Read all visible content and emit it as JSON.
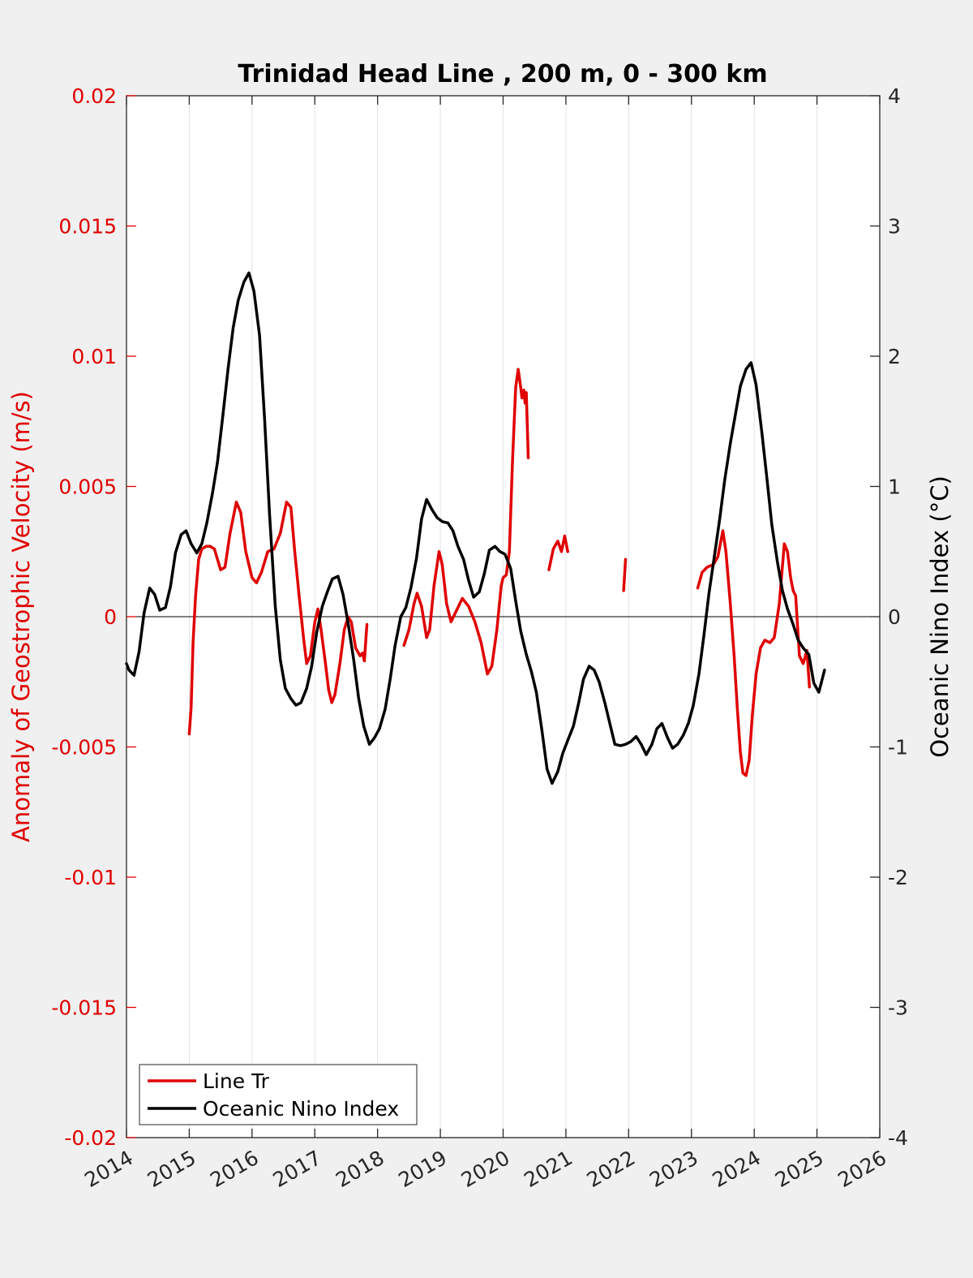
{
  "chart_data": {
    "type": "line",
    "title": "Trinidad Head Line , 200 m, 0 - 300 km",
    "ylabel_left": "Anomaly of Geostrophic Velocity (m/s)",
    "ylabel_right": "Oceanic Nino Index (°C)",
    "xlabel": "",
    "xlim": [
      2014,
      2026
    ],
    "ylim_left": [
      -0.02,
      0.02
    ],
    "ylim_right": [
      -4,
      4
    ],
    "x_ticks": [
      "2014",
      "2015",
      "2016",
      "2017",
      "2018",
      "2019",
      "2020",
      "2021",
      "2022",
      "2023",
      "2024",
      "2025",
      "2026"
    ],
    "y_left_ticks": [
      "0.02",
      "0.015",
      "0.01",
      "0.005",
      "0",
      "-0.005",
      "-0.01",
      "-0.015",
      "-0.02"
    ],
    "y_right_ticks": [
      "4",
      "3",
      "2",
      "1",
      "0",
      "-1",
      "-2",
      "-3",
      "-4"
    ],
    "grid": "vertical",
    "legend_position": "bottom-left",
    "colors": {
      "left_axis": "#e00000",
      "right_axis": "#000000",
      "line_tr": "#e00000",
      "oni": "#000000"
    },
    "series": [
      {
        "name": "Line Tr",
        "axis": "left",
        "color": "#e00000",
        "segments": [
          [
            [
              2015.0,
              -0.0045
            ],
            [
              2015.03,
              -0.0035
            ],
            [
              2015.06,
              -0.001
            ],
            [
              2015.1,
              0.0008
            ],
            [
              2015.15,
              0.0022
            ],
            [
              2015.2,
              0.0026
            ],
            [
              2015.27,
              0.0027
            ],
            [
              2015.33,
              0.0027
            ],
            [
              2015.4,
              0.0026
            ],
            [
              2015.5,
              0.0018
            ],
            [
              2015.57,
              0.0019
            ],
            [
              2015.65,
              0.0032
            ],
            [
              2015.75,
              0.0044
            ],
            [
              2015.82,
              0.004
            ],
            [
              2015.9,
              0.0025
            ],
            [
              2016.0,
              0.0015
            ],
            [
              2016.07,
              0.0013
            ],
            [
              2016.15,
              0.0017
            ],
            [
              2016.25,
              0.0025
            ],
            [
              2016.35,
              0.0026
            ],
            [
              2016.45,
              0.0032
            ],
            [
              2016.55,
              0.0044
            ],
            [
              2016.62,
              0.0042
            ],
            [
              2016.68,
              0.0025
            ],
            [
              2016.75,
              0.0008
            ],
            [
              2016.82,
              -0.0008
            ],
            [
              2016.87,
              -0.0018
            ],
            [
              2016.93,
              -0.0015
            ],
            [
              2017.0,
              -0.0002
            ],
            [
              2017.05,
              0.0003
            ],
            [
              2017.1,
              -0.0005
            ],
            [
              2017.17,
              -0.0018
            ],
            [
              2017.22,
              -0.0028
            ],
            [
              2017.27,
              -0.0033
            ],
            [
              2017.32,
              -0.003
            ],
            [
              2017.4,
              -0.0018
            ],
            [
              2017.47,
              -0.0005
            ],
            [
              2017.53,
              0.0
            ],
            [
              2017.58,
              -0.0002
            ],
            [
              2017.65,
              -0.0012
            ],
            [
              2017.72,
              -0.0015
            ],
            [
              2017.76,
              -0.0014
            ],
            [
              2017.79,
              -0.0017
            ],
            [
              2017.83,
              -0.0003
            ]
          ],
          [
            [
              2018.42,
              -0.0011
            ],
            [
              2018.5,
              -0.0005
            ],
            [
              2018.58,
              0.0005
            ],
            [
              2018.63,
              0.0009
            ],
            [
              2018.7,
              0.0004
            ],
            [
              2018.78,
              -0.0008
            ],
            [
              2018.83,
              -0.0005
            ],
            [
              2018.9,
              0.0012
            ],
            [
              2018.98,
              0.0025
            ],
            [
              2019.03,
              0.002
            ],
            [
              2019.1,
              0.0005
            ],
            [
              2019.17,
              -0.0002
            ],
            [
              2019.25,
              0.0002
            ],
            [
              2019.35,
              0.0007
            ],
            [
              2019.45,
              0.0004
            ],
            [
              2019.55,
              -0.0002
            ],
            [
              2019.65,
              -0.001
            ],
            [
              2019.75,
              -0.0022
            ],
            [
              2019.82,
              -0.0019
            ],
            [
              2019.9,
              -0.0005
            ],
            [
              2019.97,
              0.0012
            ],
            [
              2020.0,
              0.0015
            ],
            [
              2020.05,
              0.0016
            ],
            [
              2020.1,
              0.0025
            ],
            [
              2020.15,
              0.006
            ],
            [
              2020.2,
              0.0088
            ],
            [
              2020.24,
              0.0095
            ],
            [
              2020.28,
              0.0088
            ],
            [
              2020.3,
              0.0084
            ],
            [
              2020.33,
              0.0087
            ],
            [
              2020.35,
              0.0082
            ],
            [
              2020.37,
              0.0086
            ],
            [
              2020.4,
              0.0061
            ]
          ],
          [
            [
              2020.73,
              0.0018
            ],
            [
              2020.8,
              0.0026
            ],
            [
              2020.87,
              0.0029
            ],
            [
              2020.93,
              0.0025
            ],
            [
              2020.98,
              0.0031
            ],
            [
              2021.03,
              0.0025
            ]
          ],
          [
            [
              2021.92,
              0.001
            ],
            [
              2021.95,
              0.0022
            ]
          ],
          [
            [
              2023.1,
              0.0011
            ],
            [
              2023.17,
              0.0017
            ],
            [
              2023.25,
              0.0019
            ],
            [
              2023.35,
              0.002
            ],
            [
              2023.42,
              0.0023
            ],
            [
              2023.5,
              0.0033
            ],
            [
              2023.55,
              0.0025
            ],
            [
              2023.62,
              0.0005
            ],
            [
              2023.68,
              -0.0015
            ],
            [
              2023.73,
              -0.0035
            ],
            [
              2023.78,
              -0.0052
            ],
            [
              2023.82,
              -0.006
            ],
            [
              2023.87,
              -0.0061
            ],
            [
              2023.92,
              -0.0055
            ],
            [
              2023.97,
              -0.0038
            ],
            [
              2024.03,
              -0.0022
            ],
            [
              2024.1,
              -0.0012
            ],
            [
              2024.17,
              -0.0009
            ],
            [
              2024.25,
              -0.001
            ],
            [
              2024.32,
              -0.0008
            ],
            [
              2024.4,
              0.0005
            ],
            [
              2024.48,
              0.0028
            ],
            [
              2024.53,
              0.0025
            ],
            [
              2024.58,
              0.0015
            ],
            [
              2024.62,
              0.001
            ],
            [
              2024.66,
              0.0008
            ],
            [
              2024.72,
              -0.0015
            ],
            [
              2024.78,
              -0.0018
            ],
            [
              2024.84,
              -0.0013
            ],
            [
              2024.88,
              -0.0027
            ]
          ]
        ]
      },
      {
        "name": "Oceanic Nino Index",
        "axis": "right",
        "color": "#000000",
        "segments": [
          [
            [
              2014.0,
              -0.36
            ],
            [
              2014.04,
              -0.41
            ],
            [
              2014.12,
              -0.45
            ],
            [
              2014.2,
              -0.27
            ],
            [
              2014.28,
              0.03
            ],
            [
              2014.37,
              0.22
            ],
            [
              2014.45,
              0.17
            ],
            [
              2014.53,
              0.05
            ],
            [
              2014.62,
              0.07
            ],
            [
              2014.7,
              0.23
            ],
            [
              2014.78,
              0.49
            ],
            [
              2014.87,
              0.63
            ],
            [
              2014.95,
              0.66
            ],
            [
              2015.03,
              0.56
            ],
            [
              2015.12,
              0.49
            ],
            [
              2015.2,
              0.56
            ],
            [
              2015.28,
              0.72
            ],
            [
              2015.37,
              0.95
            ],
            [
              2015.45,
              1.19
            ],
            [
              2015.53,
              1.52
            ],
            [
              2015.62,
              1.91
            ],
            [
              2015.7,
              2.22
            ],
            [
              2015.78,
              2.43
            ],
            [
              2015.87,
              2.57
            ],
            [
              2015.95,
              2.64
            ],
            [
              2016.03,
              2.5
            ],
            [
              2016.12,
              2.16
            ],
            [
              2016.2,
              1.52
            ],
            [
              2016.28,
              0.78
            ],
            [
              2016.37,
              0.08
            ],
            [
              2016.45,
              -0.33
            ],
            [
              2016.53,
              -0.55
            ],
            [
              2016.62,
              -0.63
            ],
            [
              2016.7,
              -0.68
            ],
            [
              2016.78,
              -0.66
            ],
            [
              2016.87,
              -0.55
            ],
            [
              2016.95,
              -0.38
            ],
            [
              2017.03,
              -0.12
            ],
            [
              2017.12,
              0.08
            ],
            [
              2017.2,
              0.19
            ],
            [
              2017.28,
              0.29
            ],
            [
              2017.37,
              0.31
            ],
            [
              2017.45,
              0.17
            ],
            [
              2017.53,
              -0.05
            ],
            [
              2017.62,
              -0.33
            ],
            [
              2017.7,
              -0.63
            ],
            [
              2017.78,
              -0.84
            ],
            [
              2017.87,
              -0.98
            ],
            [
              2017.95,
              -0.93
            ],
            [
              2018.03,
              -0.86
            ],
            [
              2018.12,
              -0.71
            ],
            [
              2018.2,
              -0.48
            ],
            [
              2018.28,
              -0.22
            ],
            [
              2018.37,
              0.0
            ],
            [
              2018.45,
              0.07
            ],
            [
              2018.53,
              0.22
            ],
            [
              2018.62,
              0.45
            ],
            [
              2018.7,
              0.75
            ],
            [
              2018.78,
              0.9
            ],
            [
              2018.87,
              0.82
            ],
            [
              2018.95,
              0.76
            ],
            [
              2019.03,
              0.73
            ],
            [
              2019.12,
              0.72
            ],
            [
              2019.2,
              0.66
            ],
            [
              2019.28,
              0.54
            ],
            [
              2019.37,
              0.44
            ],
            [
              2019.45,
              0.28
            ],
            [
              2019.53,
              0.15
            ],
            [
              2019.62,
              0.19
            ],
            [
              2019.7,
              0.33
            ],
            [
              2019.78,
              0.51
            ],
            [
              2019.87,
              0.54
            ],
            [
              2019.95,
              0.5
            ],
            [
              2020.03,
              0.48
            ],
            [
              2020.12,
              0.37
            ],
            [
              2020.2,
              0.12
            ],
            [
              2020.28,
              -0.11
            ],
            [
              2020.37,
              -0.29
            ],
            [
              2020.45,
              -0.42
            ],
            [
              2020.53,
              -0.58
            ],
            [
              2020.62,
              -0.88
            ],
            [
              2020.7,
              -1.17
            ],
            [
              2020.78,
              -1.28
            ],
            [
              2020.87,
              -1.19
            ],
            [
              2020.95,
              -1.05
            ],
            [
              2021.03,
              -0.95
            ],
            [
              2021.12,
              -0.84
            ],
            [
              2021.2,
              -0.67
            ],
            [
              2021.28,
              -0.48
            ],
            [
              2021.37,
              -0.38
            ],
            [
              2021.45,
              -0.41
            ],
            [
              2021.53,
              -0.5
            ],
            [
              2021.62,
              -0.66
            ],
            [
              2021.7,
              -0.82
            ],
            [
              2021.78,
              -0.98
            ],
            [
              2021.87,
              -0.99
            ],
            [
              2021.95,
              -0.98
            ],
            [
              2022.03,
              -0.96
            ],
            [
              2022.12,
              -0.92
            ],
            [
              2022.2,
              -0.98
            ],
            [
              2022.28,
              -1.06
            ],
            [
              2022.37,
              -0.98
            ],
            [
              2022.45,
              -0.86
            ],
            [
              2022.53,
              -0.82
            ],
            [
              2022.62,
              -0.93
            ],
            [
              2022.7,
              -1.01
            ],
            [
              2022.78,
              -0.98
            ],
            [
              2022.87,
              -0.91
            ],
            [
              2022.95,
              -0.82
            ],
            [
              2023.03,
              -0.68
            ],
            [
              2023.12,
              -0.44
            ],
            [
              2023.2,
              -0.14
            ],
            [
              2023.28,
              0.18
            ],
            [
              2023.37,
              0.48
            ],
            [
              2023.45,
              0.75
            ],
            [
              2023.53,
              1.05
            ],
            [
              2023.62,
              1.33
            ],
            [
              2023.7,
              1.55
            ],
            [
              2023.78,
              1.77
            ],
            [
              2023.87,
              1.9
            ],
            [
              2023.95,
              1.95
            ],
            [
              2024.03,
              1.78
            ],
            [
              2024.12,
              1.42
            ],
            [
              2024.2,
              1.07
            ],
            [
              2024.28,
              0.71
            ],
            [
              2024.37,
              0.42
            ],
            [
              2024.45,
              0.2
            ],
            [
              2024.53,
              0.06
            ],
            [
              2024.62,
              -0.06
            ],
            [
              2024.7,
              -0.18
            ],
            [
              2024.78,
              -0.24
            ],
            [
              2024.87,
              -0.29
            ],
            [
              2024.95,
              -0.51
            ],
            [
              2025.03,
              -0.58
            ],
            [
              2025.12,
              -0.41
            ]
          ]
        ]
      }
    ]
  }
}
